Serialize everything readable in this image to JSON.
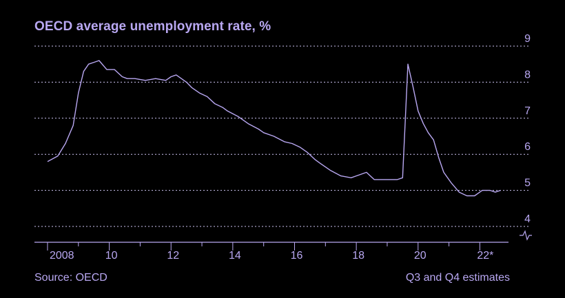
{
  "title": "OECD average unemployment rate, %",
  "source": "Source: OECD",
  "footnote": "Q3 and Q4 estimates",
  "colors": {
    "background": "#000000",
    "accent": "#b9a8f2",
    "line": "#b9a8f2",
    "grid": "#cfc6f5"
  },
  "chart_data": {
    "type": "line",
    "title": "OECD average unemployment rate, %",
    "xlabel": "",
    "ylabel": "",
    "ylim": [
      4,
      9
    ],
    "xlim": [
      2007.8,
      2022.75
    ],
    "yticks": [
      4,
      5,
      6,
      7,
      8,
      9
    ],
    "ytick_labels": [
      "4",
      "5",
      "6",
      "7",
      "8",
      "9"
    ],
    "xticks": [
      2008,
      2010,
      2012,
      2014,
      2016,
      2018,
      2020,
      2022
    ],
    "xtick_labels": [
      "2008",
      "10",
      "12",
      "14",
      "16",
      "18",
      "20",
      "22*"
    ],
    "grid": true,
    "legend": "none",
    "axis_break": true,
    "series": [
      {
        "x": [
          2008.0,
          2008.33,
          2008.58,
          2008.83,
          2009.0,
          2009.17,
          2009.33,
          2009.5,
          2009.67,
          2009.92,
          2010.17,
          2010.42,
          2010.58,
          2010.83,
          2011.17,
          2011.5,
          2011.83,
          2012.0,
          2012.17,
          2012.5,
          2012.67,
          2012.92,
          2013.17,
          2013.42,
          2013.67,
          2013.83,
          2014.17,
          2014.5,
          2014.83,
          2015.0,
          2015.33,
          2015.67,
          2015.92,
          2016.17,
          2016.42,
          2016.67,
          2016.83,
          2017.17,
          2017.5,
          2017.83,
          2018.0,
          2018.33,
          2018.58,
          2018.83,
          2019.08,
          2019.33,
          2019.5,
          2019.67,
          2019.83,
          2020.0,
          2020.17,
          2020.33,
          2020.5,
          2020.67,
          2020.83,
          2021.08,
          2021.33,
          2021.58,
          2021.83,
          2022.08,
          2022.33,
          2022.5,
          2022.67
        ],
        "values": [
          5.8,
          5.95,
          6.3,
          6.8,
          7.7,
          8.3,
          8.5,
          8.55,
          8.6,
          8.35,
          8.35,
          8.15,
          8.1,
          8.1,
          8.05,
          8.1,
          8.05,
          8.15,
          8.2,
          8.0,
          7.85,
          7.7,
          7.6,
          7.4,
          7.3,
          7.2,
          7.05,
          6.85,
          6.7,
          6.6,
          6.5,
          6.35,
          6.3,
          6.2,
          6.05,
          5.85,
          5.75,
          5.55,
          5.4,
          5.35,
          5.4,
          5.5,
          5.3,
          5.3,
          5.3,
          5.3,
          5.35,
          8.5,
          7.9,
          7.2,
          6.85,
          6.6,
          6.4,
          5.9,
          5.5,
          5.2,
          4.95,
          4.85,
          4.85,
          5.0,
          5.0,
          4.95,
          5.0
        ]
      }
    ]
  }
}
